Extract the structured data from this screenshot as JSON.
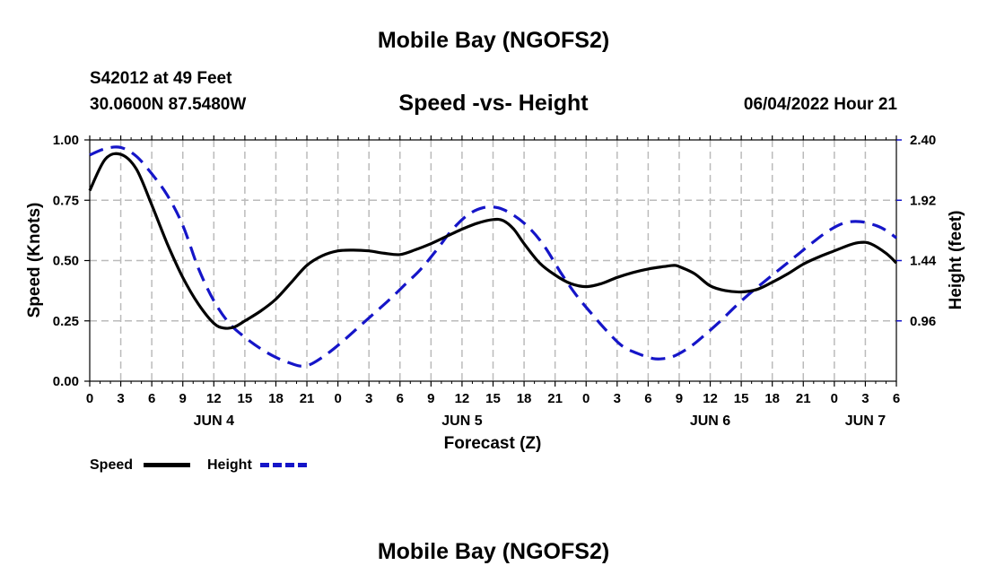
{
  "header": {
    "title": "Mobile Bay (NGOFS2)",
    "station": "S42012 at 49 Feet",
    "coords": "30.0600N  87.5480W",
    "subtitle": "Speed -vs- Height",
    "run_time": "06/04/2022 Hour 21"
  },
  "footer": {
    "title": "Mobile Bay (NGOFS2)"
  },
  "legend": {
    "speed_label": "Speed",
    "height_label": "Height"
  },
  "colors": {
    "speed": "#000000",
    "height": "#1515c8",
    "grid": "#bbbbbb"
  },
  "chart_data": {
    "type": "line",
    "title": "Speed -vs- Height",
    "xlabel": "Forecast (Z)",
    "ylabel": "Speed (Knots)",
    "y2label": "Height (feet)",
    "x_range_hours": [
      0,
      78
    ],
    "x_ticks": [
      "0",
      "3",
      "6",
      "9",
      "12",
      "15",
      "18",
      "21",
      "0",
      "3",
      "6",
      "9",
      "12",
      "15",
      "18",
      "21",
      "0",
      "3",
      "6",
      "9",
      "12",
      "15",
      "18",
      "21",
      "0",
      "3",
      "6"
    ],
    "date_labels": [
      {
        "label": "JUN 4",
        "hour": 12
      },
      {
        "label": "JUN 5",
        "hour": 36
      },
      {
        "label": "JUN 6",
        "hour": 60
      },
      {
        "label": "JUN 7",
        "hour": 75
      }
    ],
    "ylim": [
      0,
      1.0
    ],
    "y_ticks": [
      "0.00",
      "0.25",
      "0.50",
      "0.75",
      "1.00"
    ],
    "y2lim": [
      0.48,
      2.4
    ],
    "y2_ticks": [
      "0.96",
      "1.44",
      "1.92",
      "2.40"
    ],
    "y2_tick_values": [
      0.96,
      1.44,
      1.92,
      2.4
    ],
    "series": [
      {
        "name": "Speed",
        "axis": "left",
        "style": "solid",
        "x": [
          0,
          1.5,
          3,
          4.5,
          6,
          7.5,
          9,
          10.5,
          12,
          13,
          14,
          15,
          16.5,
          18,
          19.5,
          21,
          22.5,
          24,
          25.5,
          27,
          28.5,
          30,
          31.5,
          33,
          34.5,
          36,
          37.5,
          39,
          40,
          41,
          42,
          43.5,
          45,
          46.5,
          48,
          49.5,
          51,
          52.5,
          54,
          55.5,
          56.5,
          57,
          58.5,
          60,
          61.5,
          63,
          64.5,
          66,
          67.5,
          69,
          70.5,
          72,
          73.5,
          74.5,
          75.5,
          77,
          78
        ],
        "values": [
          0.79,
          0.92,
          0.94,
          0.88,
          0.73,
          0.57,
          0.43,
          0.32,
          0.24,
          0.22,
          0.225,
          0.25,
          0.29,
          0.34,
          0.41,
          0.48,
          0.52,
          0.54,
          0.543,
          0.54,
          0.53,
          0.525,
          0.545,
          0.57,
          0.6,
          0.63,
          0.655,
          0.67,
          0.665,
          0.63,
          0.57,
          0.49,
          0.44,
          0.405,
          0.392,
          0.405,
          0.43,
          0.45,
          0.465,
          0.475,
          0.48,
          0.475,
          0.445,
          0.395,
          0.375,
          0.37,
          0.38,
          0.41,
          0.445,
          0.485,
          0.515,
          0.54,
          0.565,
          0.575,
          0.57,
          0.53,
          0.49
        ]
      },
      {
        "name": "Height",
        "axis": "right",
        "style": "dashed",
        "x": [
          0,
          1.5,
          3,
          4.5,
          6,
          7.5,
          9,
          10.5,
          12,
          13.5,
          15,
          16.5,
          18,
          19.5,
          20.5,
          21.5,
          23,
          24.5,
          26,
          27.5,
          29,
          30.5,
          32,
          33.5,
          35,
          36.5,
          38,
          39.5,
          41,
          42.5,
          44,
          45.5,
          47,
          48.5,
          50,
          51.5,
          53,
          54.5,
          55.5,
          56.5,
          58,
          59.5,
          61,
          62.5,
          64,
          65.5,
          67,
          68.5,
          70,
          71.5,
          73,
          74.5,
          76,
          77,
          78
        ],
        "values": [
          2.28,
          2.33,
          2.34,
          2.27,
          2.13,
          1.96,
          1.72,
          1.38,
          1.12,
          0.94,
          0.83,
          0.74,
          0.67,
          0.62,
          0.6,
          0.62,
          0.7,
          0.8,
          0.91,
          1.02,
          1.13,
          1.25,
          1.37,
          1.52,
          1.68,
          1.8,
          1.86,
          1.86,
          1.8,
          1.7,
          1.55,
          1.35,
          1.17,
          1.02,
          0.88,
          0.76,
          0.7,
          0.66,
          0.66,
          0.68,
          0.75,
          0.85,
          0.96,
          1.08,
          1.19,
          1.29,
          1.39,
          1.49,
          1.59,
          1.68,
          1.74,
          1.75,
          1.72,
          1.68,
          1.62
        ]
      }
    ]
  }
}
